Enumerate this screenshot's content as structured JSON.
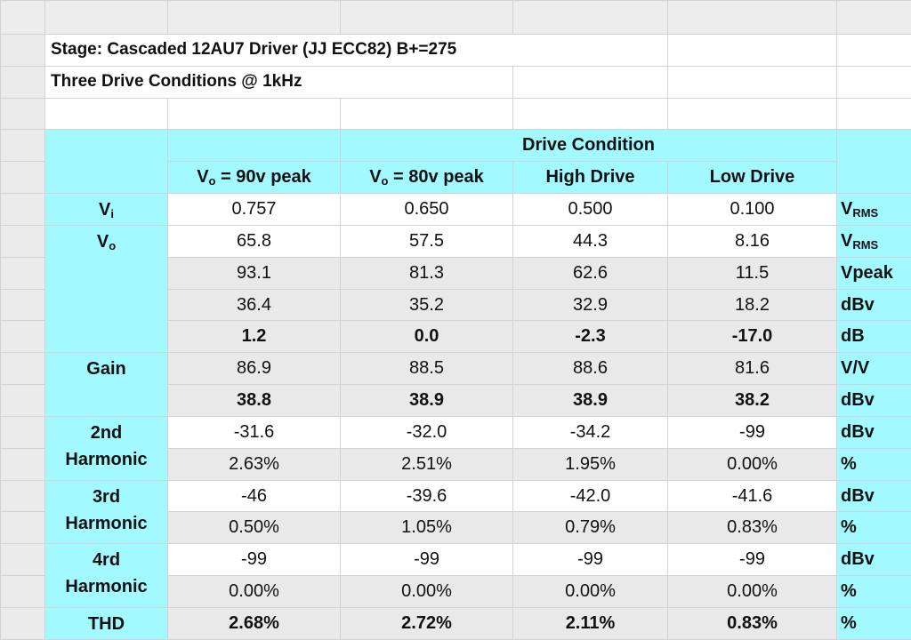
{
  "sheet": {
    "title_lines": [
      "Stage: Cascaded 12AU7 Driver (JJ ECC82) B+=275",
      "Three Drive Conditions @ 1kHz"
    ],
    "group_header": "Drive Condition",
    "columns": [
      {
        "main": "V",
        "sub": "o",
        "rest": " = 90v peak"
      },
      {
        "main": "V",
        "sub": "o",
        "rest": " = 80v peak"
      },
      "High Drive",
      "Low Drive"
    ],
    "groups": [
      {
        "label": {
          "main": "V",
          "sub": "i"
        },
        "rows": [
          {
            "values": [
              "0.757",
              "0.650",
              "0.500",
              "0.100"
            ],
            "unit": {
              "main": "V",
              "sub": "RMS"
            },
            "bold": false,
            "shaded": false
          }
        ]
      },
      {
        "label": {
          "main": "V",
          "sub": "o"
        },
        "rows": [
          {
            "values": [
              "65.8",
              "57.5",
              "44.3",
              "8.16"
            ],
            "unit": {
              "main": "V",
              "sub": "RMS"
            },
            "bold": false,
            "shaded": false
          },
          {
            "values": [
              "93.1",
              "81.3",
              "62.6",
              "11.5"
            ],
            "unit": "Vpeak",
            "bold": false,
            "shaded": true
          },
          {
            "values": [
              "36.4",
              "35.2",
              "32.9",
              "18.2"
            ],
            "unit": "dBv",
            "bold": false,
            "shaded": true
          },
          {
            "values": [
              "1.2",
              "0.0",
              "-2.3",
              "-17.0"
            ],
            "unit": "dB",
            "bold": true,
            "shaded": true
          }
        ]
      },
      {
        "label": "Gain",
        "rows": [
          {
            "values": [
              "86.9",
              "88.5",
              "88.6",
              "81.6"
            ],
            "unit": "V/V",
            "bold": false,
            "shaded": true
          },
          {
            "values": [
              "38.8",
              "38.9",
              "38.9",
              "38.2"
            ],
            "unit": "dBv",
            "bold": true,
            "shaded": true
          }
        ]
      },
      {
        "label": "2nd Harmonic",
        "rows": [
          {
            "values": [
              "-31.6",
              "-32.0",
              "-34.2",
              "-99"
            ],
            "unit": "dBv",
            "bold": false,
            "shaded": false
          },
          {
            "values": [
              "2.63%",
              "2.51%",
              "1.95%",
              "0.00%"
            ],
            "unit": "%",
            "bold": false,
            "shaded": true
          }
        ]
      },
      {
        "label": "3rd Harmonic",
        "rows": [
          {
            "values": [
              "-46",
              "-39.6",
              "-42.0",
              "-41.6"
            ],
            "unit": "dBv",
            "bold": false,
            "shaded": false
          },
          {
            "values": [
              "0.50%",
              "1.05%",
              "0.79%",
              "0.83%"
            ],
            "unit": "%",
            "bold": false,
            "shaded": true
          }
        ]
      },
      {
        "label": "4rd Harmonic",
        "rows": [
          {
            "values": [
              "-99",
              "-99",
              "-99",
              "-99"
            ],
            "unit": "dBv",
            "bold": false,
            "shaded": false
          },
          {
            "values": [
              "0.00%",
              "0.00%",
              "0.00%",
              "0.00%"
            ],
            "unit": "%",
            "bold": false,
            "shaded": true
          }
        ]
      },
      {
        "label": "THD",
        "rows": [
          {
            "values": [
              "2.68%",
              "2.72%",
              "2.11%",
              "0.83%"
            ],
            "unit": "%",
            "bold": true,
            "shaded": true
          }
        ]
      }
    ]
  }
}
